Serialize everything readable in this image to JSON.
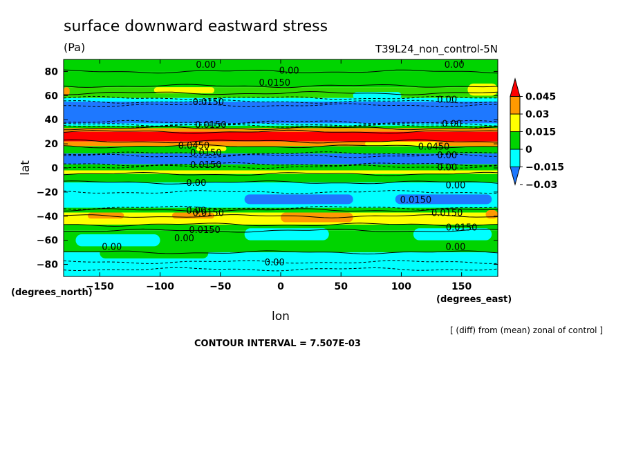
{
  "title": "surface downward eastward stress",
  "units": "(Pa)",
  "experiment": "T39L24_non_control-5N",
  "footnote": "[ (diff) from (mean) zonal of control ]",
  "contour_interval": "CONTOUR INTERVAL = 7.507E-03",
  "chart_data": {
    "type": "heatmap",
    "xlabel": "lon",
    "ylabel": "lat",
    "x_unit_label": "(degrees_east)",
    "y_unit_label": "(degrees_north)",
    "xlim": [
      -180,
      180
    ],
    "ylim": [
      -90,
      90
    ],
    "x_ticks": [
      -150,
      -100,
      -50,
      0,
      50,
      100,
      150
    ],
    "x_tick_labels": [
      "−150",
      "−100",
      "−50",
      "0",
      "50",
      "100",
      "150"
    ],
    "y_ticks": [
      -80,
      -60,
      -40,
      -20,
      0,
      20,
      40,
      60,
      80
    ],
    "y_tick_labels": [
      "−80",
      "−60",
      "−40",
      "−20",
      "0",
      "20",
      "40",
      "60",
      "80"
    ],
    "colorbar": {
      "levels": [
        -0.03,
        -0.015,
        0,
        0.015,
        0.03,
        0.045
      ],
      "labels": [
        "−0.03",
        "−0.015",
        "0",
        "0.015",
        "0.03",
        "0.045"
      ],
      "colors": [
        "#1e78ff",
        "#00ffff",
        "#00d400",
        "#ffff00",
        "#ff9900",
        "#ff0000"
      ]
    },
    "lat_bands": [
      {
        "lat": [
          80,
          90
        ],
        "value": 0.01,
        "class": "green"
      },
      {
        "lat": [
          67,
          80
        ],
        "value": 0.0,
        "class": "green"
      },
      {
        "lat": [
          58,
          67
        ],
        "value": 0.012,
        "class": "green-yellow"
      },
      {
        "lat": [
          55,
          58
        ],
        "value": -0.01,
        "class": "cyan"
      },
      {
        "lat": [
          37,
          55
        ],
        "value": -0.035,
        "class": "blue"
      },
      {
        "lat": [
          35,
          37
        ],
        "value": -0.015,
        "class": "cyan"
      },
      {
        "lat": [
          33,
          35
        ],
        "value": 0.0,
        "class": "green"
      },
      {
        "lat": [
          30,
          33
        ],
        "value": 0.035,
        "class": "orange"
      },
      {
        "lat": [
          22,
          30
        ],
        "value": 0.05,
        "class": "red"
      },
      {
        "lat": [
          18,
          22
        ],
        "value": 0.03,
        "class": "orange"
      },
      {
        "lat": [
          12,
          18
        ],
        "value": 0.005,
        "class": "green"
      },
      {
        "lat": [
          3,
          12
        ],
        "value": -0.035,
        "class": "blue"
      },
      {
        "lat": [
          -2,
          3
        ],
        "value": 0.005,
        "class": "green"
      },
      {
        "lat": [
          -5,
          -2
        ],
        "value": 0.02,
        "class": "yellow"
      },
      {
        "lat": [
          -12,
          -5
        ],
        "value": 0.0,
        "class": "green"
      },
      {
        "lat": [
          -33,
          -12
        ],
        "value": -0.01,
        "class": "cyan"
      },
      {
        "lat": [
          -37,
          -33
        ],
        "value": 0.01,
        "class": "green"
      },
      {
        "lat": [
          -47,
          -37
        ],
        "value": 0.025,
        "class": "yellow"
      },
      {
        "lat": [
          -52,
          -47
        ],
        "value": 0.01,
        "class": "green"
      },
      {
        "lat": [
          -70,
          -52
        ],
        "value": 0.005,
        "class": "green"
      },
      {
        "lat": [
          -90,
          -70
        ],
        "value": -0.01,
        "class": "cyan"
      }
    ],
    "patches": [
      {
        "lon": [
          -180,
          -175
        ],
        "lat": [
          60,
          67
        ],
        "class": "orange"
      },
      {
        "lon": [
          -105,
          -55
        ],
        "lat": [
          62,
          67
        ],
        "class": "yellow"
      },
      {
        "lon": [
          60,
          100
        ],
        "lat": [
          57,
          63
        ],
        "class": "cyan"
      },
      {
        "lon": [
          155,
          180
        ],
        "lat": [
          60,
          70
        ],
        "class": "yellow"
      },
      {
        "lon": [
          -30,
          60
        ],
        "lat": [
          -30,
          -22
        ],
        "class": "blue"
      },
      {
        "lon": [
          95,
          175
        ],
        "lat": [
          -30,
          -22
        ],
        "class": "blue"
      },
      {
        "lon": [
          -160,
          -130
        ],
        "lat": [
          -42,
          -37
        ],
        "class": "orange"
      },
      {
        "lon": [
          -90,
          -55
        ],
        "lat": [
          -42,
          -37
        ],
        "class": "orange"
      },
      {
        "lon": [
          0,
          60
        ],
        "lat": [
          -45,
          -37
        ],
        "class": "orange"
      },
      {
        "lon": [
          170,
          180
        ],
        "lat": [
          -42,
          -35
        ],
        "class": "orange"
      },
      {
        "lon": [
          -170,
          -100
        ],
        "lat": [
          -65,
          -55
        ],
        "class": "cyan"
      },
      {
        "lon": [
          -30,
          40
        ],
        "lat": [
          -60,
          -50
        ],
        "class": "cyan"
      },
      {
        "lon": [
          110,
          175
        ],
        "lat": [
          -60,
          -50
        ],
        "class": "cyan"
      },
      {
        "lon": [
          -150,
          -60
        ],
        "lat": [
          -75,
          -66
        ],
        "class": "green"
      },
      {
        "lon": [
          -70,
          -45
        ],
        "lat": [
          14,
          18
        ],
        "class": "yellow"
      },
      {
        "lon": [
          70,
          130
        ],
        "lat": [
          18,
          22
        ],
        "class": "yellow"
      }
    ],
    "contour_lines": [
      {
        "lat": 80,
        "dashed": false
      },
      {
        "lat": 68,
        "dashed": false
      },
      {
        "lat": 62,
        "dashed": false
      },
      {
        "lat": 58,
        "dashed": true
      },
      {
        "lat": 55,
        "dashed": true
      },
      {
        "lat": 52,
        "dashed": true
      },
      {
        "lat": 38,
        "dashed": true
      },
      {
        "lat": 36,
        "dashed": true
      },
      {
        "lat": 35,
        "dashed": true
      },
      {
        "lat": 33,
        "dashed": false
      },
      {
        "lat": 30,
        "dashed": false
      },
      {
        "lat": 22,
        "dashed": false
      },
      {
        "lat": 18,
        "dashed": false
      },
      {
        "lat": 12,
        "dashed": true
      },
      {
        "lat": 10,
        "dashed": true
      },
      {
        "lat": 3,
        "dashed": true
      },
      {
        "lat": 1,
        "dashed": true
      },
      {
        "lat": -5,
        "dashed": false
      },
      {
        "lat": -12,
        "dashed": false
      },
      {
        "lat": -20,
        "dashed": true
      },
      {
        "lat": -33,
        "dashed": true
      },
      {
        "lat": -35,
        "dashed": false
      },
      {
        "lat": -40,
        "dashed": false
      },
      {
        "lat": -47,
        "dashed": false
      },
      {
        "lat": -52,
        "dashed": false
      },
      {
        "lat": -70,
        "dashed": false
      },
      {
        "lat": -78,
        "dashed": true
      },
      {
        "lat": -84,
        "dashed": true
      }
    ],
    "annotations": [
      {
        "text": "0.00",
        "lon": -62,
        "lat": 86
      },
      {
        "text": "0.00",
        "lon": 7,
        "lat": 81
      },
      {
        "text": "0.00",
        "lon": 144,
        "lat": 86
      },
      {
        "text": "0.0150",
        "lon": -5,
        "lat": 71
      },
      {
        "text": "0.0150",
        "lon": -60,
        "lat": 55
      },
      {
        "text": "0.00",
        "lon": 138,
        "lat": 57
      },
      {
        "text": "0.0150",
        "lon": -58,
        "lat": 36
      },
      {
        "text": "0.00",
        "lon": 142,
        "lat": 37
      },
      {
        "text": "0.0450",
        "lon": -72,
        "lat": 19
      },
      {
        "text": "0.0450",
        "lon": 127,
        "lat": 18
      },
      {
        "text": "0.0150",
        "lon": -62,
        "lat": 13
      },
      {
        "text": "0.00",
        "lon": 138,
        "lat": 11
      },
      {
        "text": "0.0150",
        "lon": -62,
        "lat": 3
      },
      {
        "text": "0.00",
        "lon": 138,
        "lat": 1
      },
      {
        "text": "0.00",
        "lon": -70,
        "lat": -12
      },
      {
        "text": "0.00",
        "lon": 145,
        "lat": -14
      },
      {
        "text": "0.0150",
        "lon": 112,
        "lat": -26
      },
      {
        "text": "0.00",
        "lon": -70,
        "lat": -35
      },
      {
        "text": "0.0150",
        "lon": -60,
        "lat": -37
      },
      {
        "text": "0.0150",
        "lon": 138,
        "lat": -37
      },
      {
        "text": "0.0150",
        "lon": -63,
        "lat": -51
      },
      {
        "text": "0.0150",
        "lon": 150,
        "lat": -49
      },
      {
        "text": "0.00",
        "lon": -80,
        "lat": -58
      },
      {
        "text": "0.00",
        "lon": -140,
        "lat": -65
      },
      {
        "text": "0.00",
        "lon": 145,
        "lat": -65
      },
      {
        "text": "0.00",
        "lon": -5,
        "lat": -78
      }
    ]
  }
}
